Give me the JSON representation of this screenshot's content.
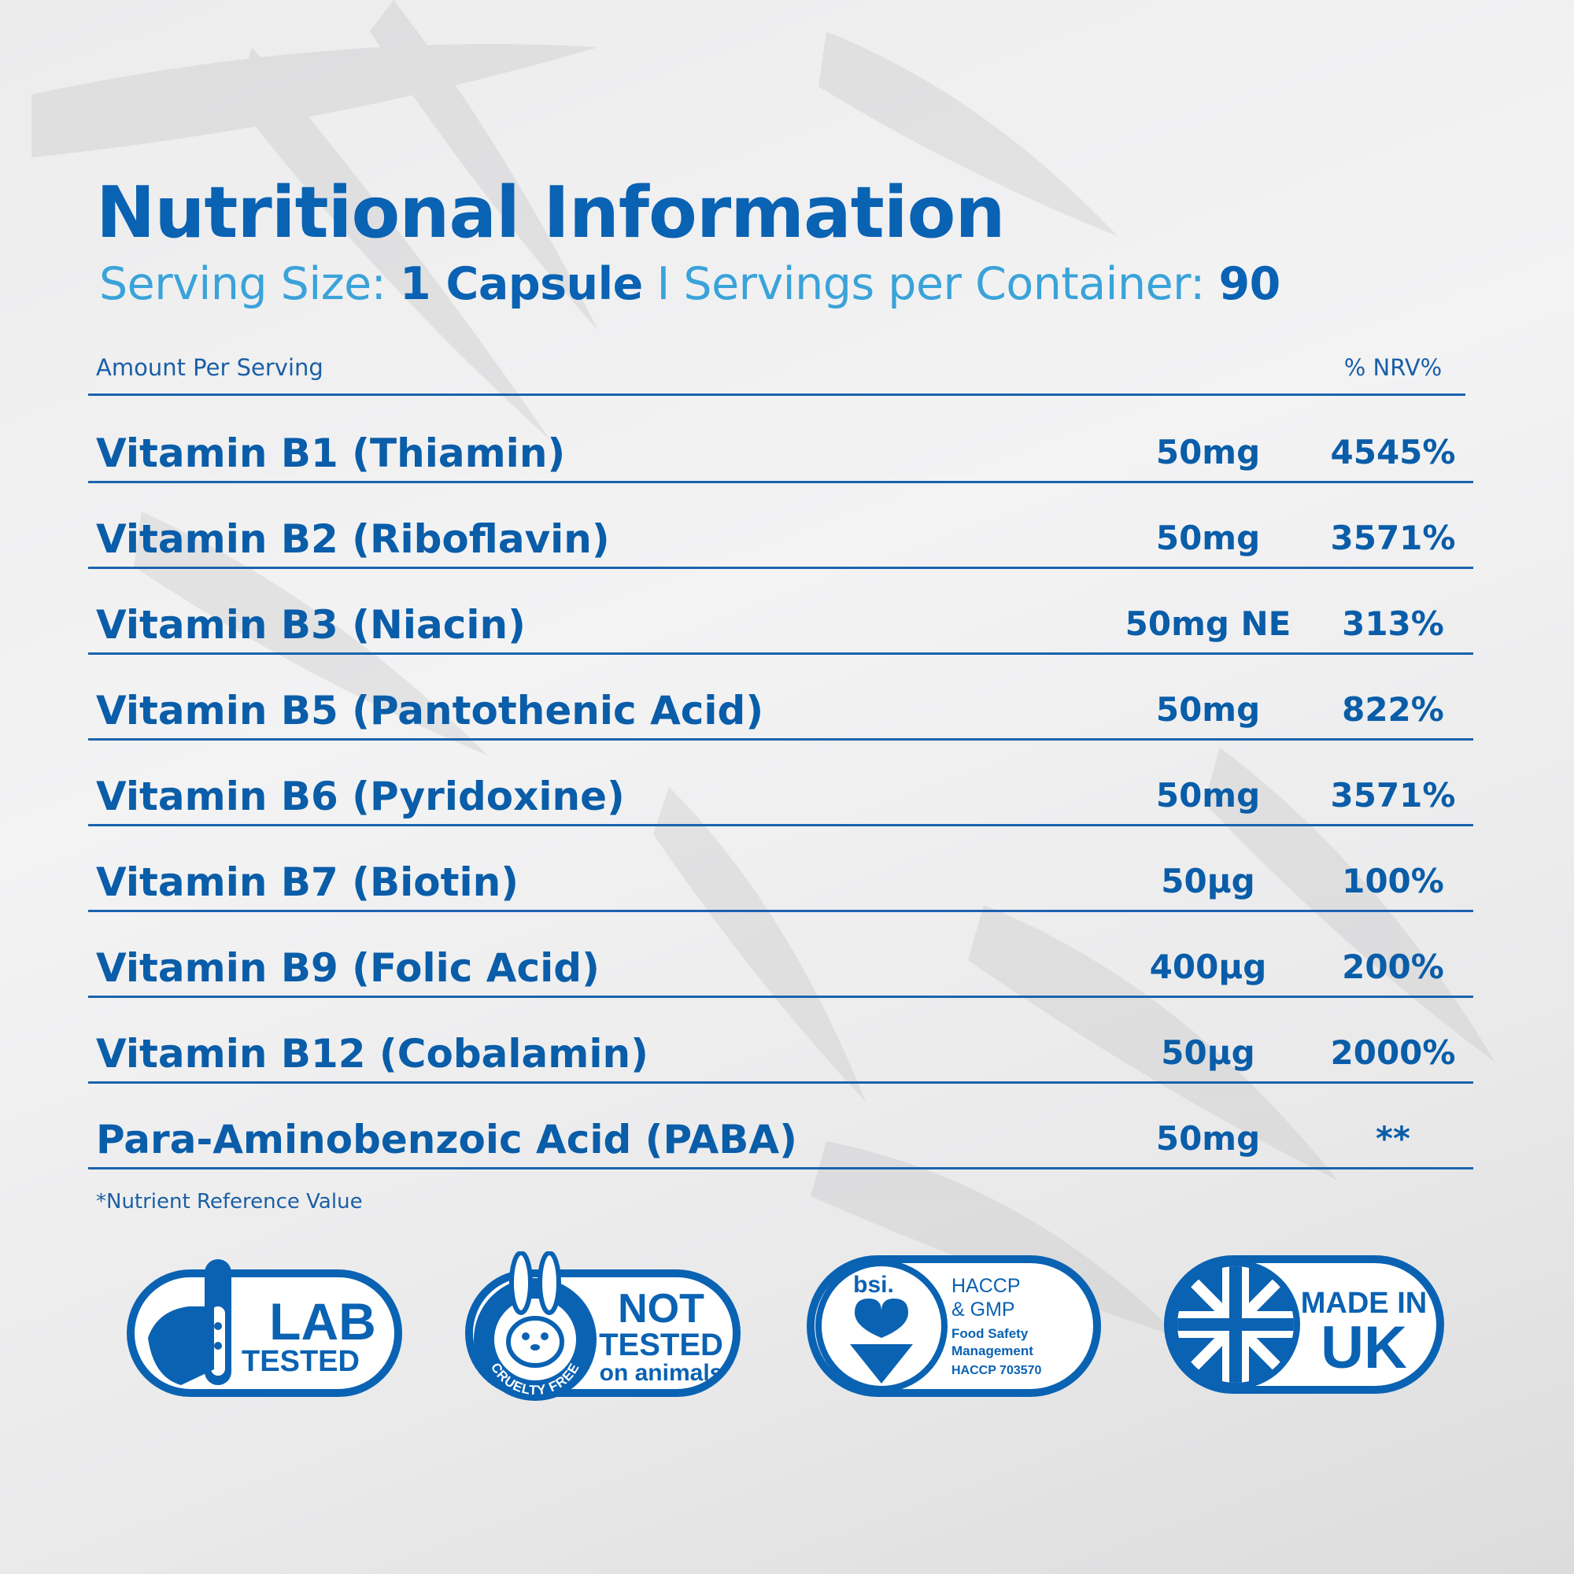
{
  "header": {
    "title": "Nutritional Information",
    "serving_size_label": "Serving Size:",
    "serving_size_value": "1 Capsule",
    "separator": "I",
    "servings_label": "Servings per Container:",
    "servings_value": "90"
  },
  "table": {
    "col_left": "Amount Per Serving",
    "col_right": "% NRV%",
    "rows": [
      {
        "name": "Vitamin B1 (Thiamin)",
        "amount": "50mg",
        "nrv": "4545%"
      },
      {
        "name": "Vitamin B2 (Riboflavin)",
        "amount": "50mg",
        "nrv": "3571%"
      },
      {
        "name": "Vitamin B3 (Niacin)",
        "amount": "50mg NE",
        "nrv": "313%"
      },
      {
        "name": "Vitamin B5 (Pantothenic Acid)",
        "amount": "50mg",
        "nrv": "822%"
      },
      {
        "name": "Vitamin B6 (Pyridoxine)",
        "amount": "50mg",
        "nrv": "3571%"
      },
      {
        "name": "Vitamin B7 (Biotin)",
        "amount": "50µg",
        "nrv": "100%"
      },
      {
        "name": "Vitamin B9 (Folic Acid)",
        "amount": "400µg",
        "nrv": "200%"
      },
      {
        "name": "Vitamin B12 (Cobalamin)",
        "amount": "50µg",
        "nrv": "2000%"
      },
      {
        "name": "Para-Aminobenzoic Acid (PABA)",
        "amount": "50mg",
        "nrv": "**"
      }
    ],
    "footnote": "*Nutrient Reference Value"
  },
  "badges": {
    "lab": {
      "line1": "LAB",
      "line2": "TESTED",
      "icon": "test-tube-hand-icon"
    },
    "cruelty": {
      "ring": "CRUELTY FREE",
      "line1": "NOT",
      "line2": "TESTED",
      "line3": "on animals",
      "icon": "rabbit-icon"
    },
    "bsi": {
      "logo": "bsi.",
      "line1": "HACCP",
      "line2": "& GMP",
      "line3": "Food Safety",
      "line4": "Management",
      "line5": "HACCP 703570",
      "icon": "kitemark-heart-icon"
    },
    "uk": {
      "line1": "MADE IN",
      "line2": "UK",
      "icon": "union-flag-icon"
    }
  },
  "colors": {
    "primary": "#0a62b3",
    "secondary": "#3aa3d9",
    "background": "#ececed"
  }
}
